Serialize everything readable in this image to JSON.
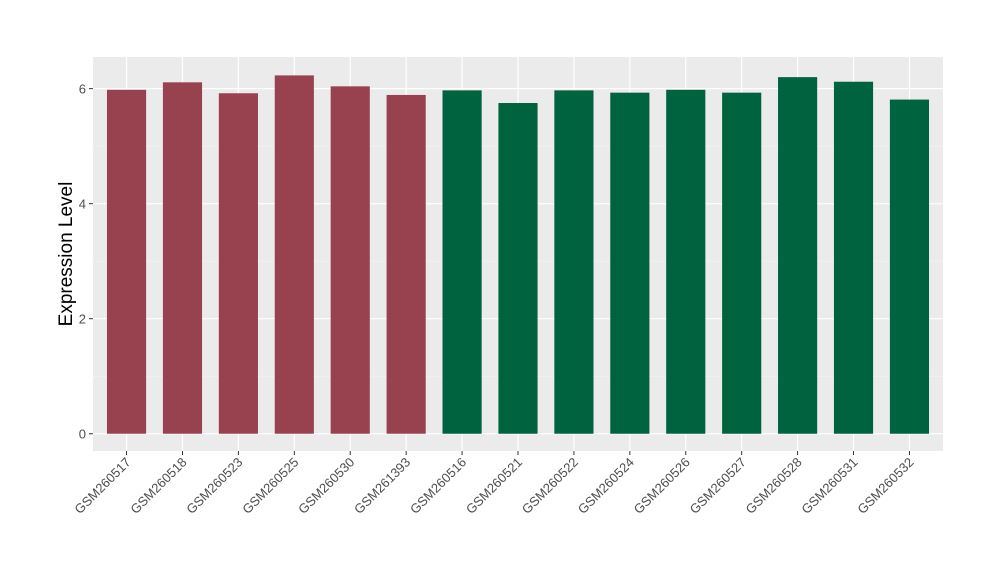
{
  "chart_data": {
    "type": "bar",
    "title": "",
    "xlabel": "",
    "ylabel": "Expression Level",
    "ylim": [
      -0.3,
      6.55
    ],
    "yticks": [
      0,
      2,
      4,
      6
    ],
    "ytick_labels": [
      "0",
      "2",
      "4",
      "6"
    ],
    "grid": true,
    "legend": "none",
    "background": "#ebebeb",
    "categories": [
      "GSM260517",
      "GSM260518",
      "GSM260523",
      "GSM260525",
      "GSM260530",
      "GSM261393",
      "GSM260516",
      "GSM260521",
      "GSM260522",
      "GSM260524",
      "GSM260526",
      "GSM260527",
      "GSM260528",
      "GSM260531",
      "GSM260532"
    ],
    "values": [
      5.98,
      6.11,
      5.92,
      6.23,
      6.04,
      5.89,
      5.97,
      5.75,
      5.97,
      5.93,
      5.98,
      5.93,
      6.2,
      6.12,
      5.81
    ],
    "group_colors": [
      "#99424f",
      "#99424f",
      "#99424f",
      "#99424f",
      "#99424f",
      "#99424f",
      "#006340",
      "#006340",
      "#006340",
      "#006340",
      "#006340",
      "#006340",
      "#006340",
      "#006340",
      "#006340"
    ]
  }
}
